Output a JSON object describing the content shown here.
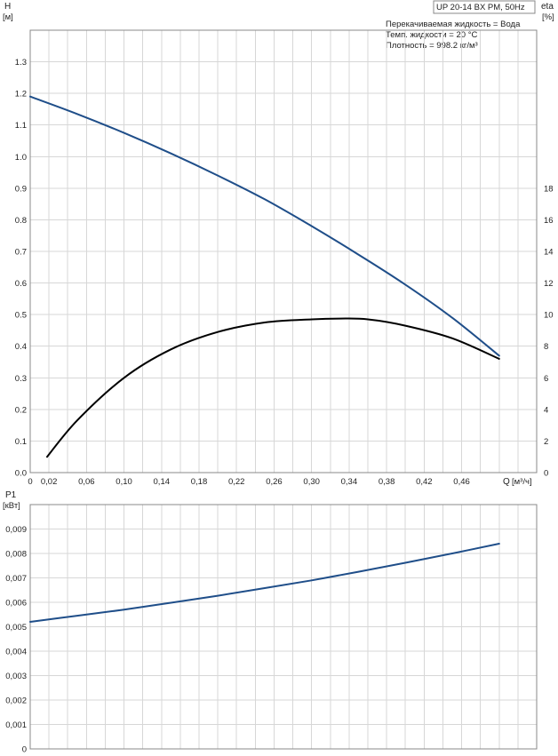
{
  "info_box": {
    "model": "UP 20-14 BX PM, 50Hz",
    "liquid": "Перекачиваемая жидкость = Вода",
    "temperature": "Темп. жидкости = 20 °C",
    "density": "Плотность = 998.2 кг/м³"
  },
  "colors": {
    "head_curve": "#1f4e89",
    "eta_curve": "#000000",
    "power_curve": "#1f4e89",
    "grid": "#d7d7d7"
  },
  "chart_data": [
    {
      "type": "line",
      "title": "",
      "ylabel": "H",
      "yunit": "[м]",
      "ylabel_right": "eta",
      "yunit_right": "[%]",
      "xlabel": "Q",
      "xunit": "[м³/ч]",
      "xlim": [
        0,
        0.54
      ],
      "ylim": [
        0,
        1.4
      ],
      "ylim_right": [
        0,
        28
      ],
      "x_ticks": [
        "0",
        "0,02",
        "0,06",
        "0,10",
        "0,14",
        "0,18",
        "0,22",
        "0,26",
        "0,30",
        "0,34",
        "0,38",
        "0,42",
        "0,46"
      ],
      "y_ticks": [
        "0.0",
        "0.1",
        "0.2",
        "0.3",
        "0.4",
        "0.5",
        "0.6",
        "0.7",
        "0.8",
        "0.9",
        "1.0",
        "1.1",
        "1.2",
        "1.3"
      ],
      "y_ticks_right": [
        "0",
        "2",
        "4",
        "6",
        "8",
        "10",
        "12",
        "14",
        "16",
        "18"
      ],
      "grid": true,
      "series": [
        {
          "axis": "left",
          "x": [
            0.0,
            0.05,
            0.1,
            0.15,
            0.2,
            0.25,
            0.3,
            0.35,
            0.4,
            0.45,
            0.5
          ],
          "values": [
            1.19,
            1.135,
            1.075,
            1.01,
            0.94,
            0.865,
            0.78,
            0.69,
            0.595,
            0.49,
            0.37
          ]
        },
        {
          "axis": "right",
          "x": [
            0.018,
            0.05,
            0.1,
            0.15,
            0.2,
            0.25,
            0.3,
            0.33,
            0.36,
            0.4,
            0.45,
            0.5
          ],
          "values": [
            1.0,
            3.3,
            6.0,
            7.8,
            8.9,
            9.5,
            9.7,
            9.75,
            9.7,
            9.3,
            8.5,
            7.2
          ]
        }
      ]
    },
    {
      "type": "line",
      "title": "",
      "ylabel": "P1",
      "yunit": "[кВт]",
      "xlim": [
        0,
        0.54
      ],
      "ylim": [
        0,
        0.01
      ],
      "y_ticks": [
        "0",
        "0,001",
        "0,002",
        "0,003",
        "0,004",
        "0,005",
        "0,006",
        "0,007",
        "0,008",
        "0,009"
      ],
      "grid": true,
      "series": [
        {
          "axis": "left",
          "x": [
            0.0,
            0.05,
            0.1,
            0.15,
            0.2,
            0.25,
            0.3,
            0.35,
            0.4,
            0.45,
            0.5
          ],
          "values": [
            0.0052,
            0.00545,
            0.0057,
            0.00598,
            0.00627,
            0.00658,
            0.0069,
            0.00725,
            0.00762,
            0.008,
            0.0084
          ]
        }
      ]
    }
  ]
}
